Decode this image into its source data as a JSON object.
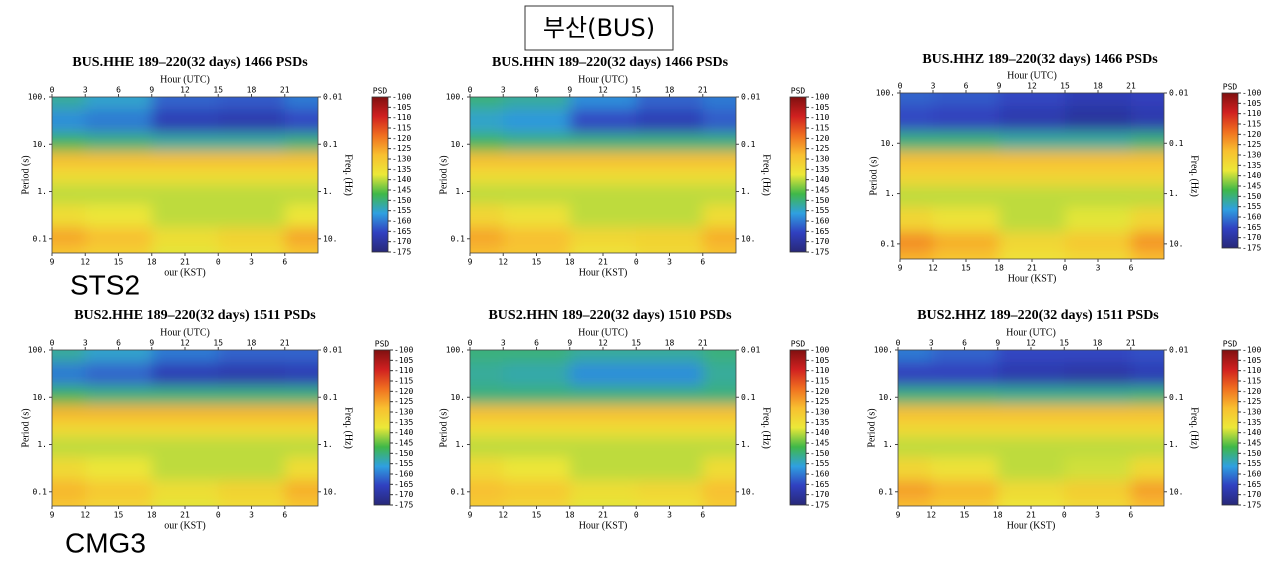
{
  "header": "부산(BUS)",
  "labels": [
    "STS2",
    "CMG3"
  ],
  "colormap": [
    "#282878",
    "#3040c0",
    "#2fa0e0",
    "#40b848",
    "#ece838",
    "#f8c030",
    "#f07020",
    "#d02020",
    "#801010"
  ],
  "chart_data": [
    {
      "type": "heatmap",
      "title": "BUS.HHE 189–220(32 days) 1466 PSDs",
      "xlabel": "Hour (UTC)",
      "x2label": "our (KST)",
      "ylabel": "Period (s)",
      "y2label": "Freq. (Hz)",
      "zlabel": "PSD",
      "xlim": [
        0,
        24
      ],
      "xticks": [
        0,
        3,
        6,
        9,
        12,
        15,
        18,
        21
      ],
      "x2lim": [
        9,
        33
      ],
      "x2ticks": [
        9,
        12,
        15,
        18,
        21,
        {
          "value": 24,
          "label": "0"
        },
        {
          "value": 27,
          "label": "3"
        },
        {
          "value": 30,
          "label": "6"
        }
      ],
      "log": true,
      "ylim": [
        0.05,
        100
      ],
      "yticks": [
        {
          "value": 100,
          "label": "100."
        },
        {
          "value": 10,
          "label": "10."
        },
        {
          "value": 1,
          "label": "1."
        },
        0.1
      ],
      "y2lim": [
        20,
        0.01
      ],
      "y2ticks": [
        0.01,
        0.1,
        {
          "value": 1,
          "label": "1."
        },
        {
          "value": 10,
          "label": "10."
        }
      ],
      "zlim": [
        -175,
        -100
      ],
      "zticks": [
        -100,
        -105,
        -110,
        -115,
        -120,
        -125,
        -130,
        -135,
        -140,
        -145,
        -150,
        -155,
        -160,
        -165,
        -170,
        -175
      ],
      "x": [
        0,
        6,
        12,
        18,
        24
      ],
      "y": [
        100,
        30,
        10,
        5,
        2,
        1,
        0.3,
        0.1,
        0.05
      ],
      "z": [
        [
          -152,
          -155,
          -162,
          -163,
          -160
        ],
        [
          -158,
          -160,
          -167,
          -168,
          -165
        ],
        [
          -148,
          -150,
          -152,
          -152,
          -150
        ],
        [
          -128,
          -128,
          -128,
          -128,
          -128
        ],
        [
          -135,
          -135,
          -135,
          -135,
          -135
        ],
        [
          -140,
          -140,
          -140,
          -140,
          -140
        ],
        [
          -135,
          -137,
          -140,
          -140,
          -137
        ],
        [
          -125,
          -128,
          -135,
          -132,
          -125
        ],
        [
          -130,
          -132,
          -138,
          -135,
          -130
        ]
      ]
    },
    {
      "type": "heatmap",
      "title": "BUS.HHN 189–220(32 days) 1466 PSDs",
      "xlabel": "Hour (UTC)",
      "x2label": "Hour (KST)",
      "ylabel": "Period (s)",
      "y2label": "Freq. (Hz)",
      "zlabel": "PSD",
      "xlim": [
        0,
        24
      ],
      "xticks": [
        0,
        3,
        6,
        9,
        12,
        15,
        18,
        21
      ],
      "x2lim": [
        9,
        33
      ],
      "x2ticks": [
        9,
        12,
        15,
        18,
        21,
        {
          "value": 24,
          "label": "0"
        },
        {
          "value": 27,
          "label": "3"
        },
        {
          "value": 30,
          "label": "6"
        }
      ],
      "log": true,
      "ylim": [
        0.05,
        100
      ],
      "yticks": [
        {
          "value": 100,
          "label": "100."
        },
        {
          "value": 10,
          "label": "10."
        },
        {
          "value": 1,
          "label": "1."
        },
        0.1
      ],
      "y2lim": [
        20,
        0.01
      ],
      "y2ticks": [
        0.01,
        0.1,
        {
          "value": 1,
          "label": "1."
        },
        {
          "value": 10,
          "label": "10."
        }
      ],
      "zlim": [
        -175,
        -100
      ],
      "zticks": [
        -100,
        -105,
        -110,
        -115,
        -120,
        -125,
        -130,
        -135,
        -140,
        -145,
        -150,
        -155,
        -160,
        -165,
        -170,
        -175
      ],
      "x": [
        0,
        6,
        12,
        18,
        24
      ],
      "y": [
        100,
        30,
        10,
        5,
        2,
        1,
        0.3,
        0.1,
        0.05
      ],
      "z": [
        [
          -150,
          -152,
          -158,
          -162,
          -160
        ],
        [
          -155,
          -157,
          -165,
          -167,
          -163
        ],
        [
          -148,
          -150,
          -150,
          -150,
          -150
        ],
        [
          -128,
          -128,
          -128,
          -128,
          -128
        ],
        [
          -135,
          -135,
          -135,
          -135,
          -135
        ],
        [
          -140,
          -140,
          -140,
          -140,
          -140
        ],
        [
          -133,
          -136,
          -140,
          -140,
          -135
        ],
        [
          -125,
          -128,
          -133,
          -132,
          -126
        ],
        [
          -128,
          -130,
          -136,
          -134,
          -129
        ]
      ]
    },
    {
      "type": "heatmap",
      "title": "BUS.HHZ 189–220(32 days) 1466 PSDs",
      "xlabel": "Hour (UTC)",
      "x2label": "Hour (KST)",
      "ylabel": "Period (s)",
      "y2label": "Freq. (Hz)",
      "zlabel": "PSD",
      "xlim": [
        0,
        24
      ],
      "xticks": [
        0,
        3,
        6,
        9,
        12,
        15,
        18,
        21
      ],
      "x2lim": [
        9,
        33
      ],
      "x2ticks": [
        9,
        12,
        15,
        18,
        21,
        {
          "value": 24,
          "label": "0"
        },
        {
          "value": 27,
          "label": "3"
        },
        {
          "value": 30,
          "label": "6"
        }
      ],
      "log": true,
      "ylim": [
        0.05,
        100
      ],
      "yticks": [
        {
          "value": 100,
          "label": "100."
        },
        {
          "value": 10,
          "label": "10."
        },
        {
          "value": 1,
          "label": "1."
        },
        0.1
      ],
      "y2lim": [
        20,
        0.01
      ],
      "y2ticks": [
        0.01,
        0.1,
        {
          "value": 1,
          "label": "1."
        },
        {
          "value": 10,
          "label": "10."
        }
      ],
      "zlim": [
        -175,
        -100
      ],
      "zticks": [
        -100,
        -105,
        -110,
        -115,
        -120,
        -125,
        -130,
        -135,
        -140,
        -145,
        -150,
        -155,
        -160,
        -165,
        -170,
        -175
      ],
      "x": [
        0,
        6,
        12,
        18,
        24
      ],
      "y": [
        100,
        30,
        10,
        5,
        2,
        1,
        0.3,
        0.1,
        0.05
      ],
      "z": [
        [
          -162,
          -163,
          -165,
          -167,
          -166
        ],
        [
          -165,
          -166,
          -168,
          -170,
          -168
        ],
        [
          -150,
          -150,
          -152,
          -152,
          -150
        ],
        [
          -128,
          -128,
          -128,
          -128,
          -128
        ],
        [
          -133,
          -133,
          -133,
          -133,
          -133
        ],
        [
          -140,
          -140,
          -140,
          -140,
          -140
        ],
        [
          -133,
          -136,
          -140,
          -138,
          -133
        ],
        [
          -122,
          -126,
          -133,
          -130,
          -123
        ],
        [
          -127,
          -130,
          -136,
          -134,
          -128
        ]
      ]
    },
    {
      "type": "heatmap",
      "title": "BUS2.HHE 189–220(32 days) 1511 PSDs",
      "xlabel": "Hour (UTC)",
      "x2label": "our (KST)",
      "ylabel": "Period (s)",
      "y2label": "Freq. (Hz)",
      "zlabel": "PSD",
      "xlim": [
        0,
        24
      ],
      "xticks": [
        0,
        3,
        6,
        9,
        12,
        15,
        18,
        21
      ],
      "x2lim": [
        9,
        33
      ],
      "x2ticks": [
        9,
        12,
        15,
        18,
        21,
        {
          "value": 24,
          "label": "0"
        },
        {
          "value": 27,
          "label": "3"
        },
        {
          "value": 30,
          "label": "6"
        }
      ],
      "log": true,
      "ylim": [
        0.05,
        100
      ],
      "yticks": [
        {
          "value": 100,
          "label": "100."
        },
        {
          "value": 10,
          "label": "10."
        },
        {
          "value": 1,
          "label": "1."
        },
        0.1
      ],
      "y2lim": [
        20,
        0.01
      ],
      "y2ticks": [
        0.01,
        0.1,
        {
          "value": 1,
          "label": "1."
        },
        {
          "value": 10,
          "label": "10."
        }
      ],
      "zlim": [
        -175,
        -100
      ],
      "zticks": [
        -100,
        -105,
        -110,
        -115,
        -120,
        -125,
        -130,
        -135,
        -140,
        -145,
        -150,
        -155,
        -160,
        -165,
        -170,
        -175
      ],
      "x": [
        0,
        6,
        12,
        18,
        24
      ],
      "y": [
        100,
        30,
        10,
        5,
        2,
        1,
        0.3,
        0.1,
        0.05
      ],
      "z": [
        [
          -152,
          -155,
          -160,
          -162,
          -162
        ],
        [
          -160,
          -162,
          -167,
          -168,
          -167
        ],
        [
          -148,
          -150,
          -150,
          -150,
          -150
        ],
        [
          -127,
          -127,
          -127,
          -127,
          -127
        ],
        [
          -134,
          -134,
          -134,
          -134,
          -134
        ],
        [
          -140,
          -140,
          -140,
          -140,
          -140
        ],
        [
          -134,
          -137,
          -140,
          -140,
          -135
        ],
        [
          -127,
          -130,
          -135,
          -132,
          -126
        ],
        [
          -130,
          -133,
          -138,
          -135,
          -130
        ]
      ]
    },
    {
      "type": "heatmap",
      "title": "BUS2.HHN 189–220(32 days) 1510 PSDs",
      "xlabel": "Hour (UTC)",
      "x2label": "Hour (KST)",
      "ylabel": "Period (s)",
      "y2label": "Freq. (Hz)",
      "zlabel": "PSD",
      "xlim": [
        0,
        24
      ],
      "xticks": [
        0,
        3,
        6,
        9,
        12,
        15,
        18,
        21
      ],
      "x2lim": [
        9,
        33
      ],
      "x2ticks": [
        9,
        12,
        15,
        18,
        21,
        {
          "value": 24,
          "label": "0"
        },
        {
          "value": 27,
          "label": "3"
        },
        {
          "value": 30,
          "label": "6"
        }
      ],
      "log": true,
      "ylim": [
        0.05,
        100
      ],
      "yticks": [
        {
          "value": 100,
          "label": "100."
        },
        {
          "value": 10,
          "label": "10."
        },
        {
          "value": 1,
          "label": "1."
        },
        0.1
      ],
      "y2lim": [
        20,
        0.01
      ],
      "y2ticks": [
        0.01,
        0.1,
        {
          "value": 1,
          "label": "1."
        },
        {
          "value": 10,
          "label": "10."
        }
      ],
      "zlim": [
        -175,
        -100
      ],
      "zticks": [
        -100,
        -105,
        -110,
        -115,
        -120,
        -125,
        -130,
        -135,
        -140,
        -145,
        -150,
        -155,
        -160,
        -165,
        -170,
        -175
      ],
      "x": [
        0,
        6,
        12,
        18,
        24
      ],
      "y": [
        100,
        30,
        10,
        5,
        2,
        1,
        0.3,
        0.1,
        0.05
      ],
      "z": [
        [
          -150,
          -150,
          -152,
          -152,
          -150
        ],
        [
          -152,
          -153,
          -158,
          -158,
          -152
        ],
        [
          -150,
          -150,
          -150,
          -150,
          -150
        ],
        [
          -128,
          -128,
          -128,
          -128,
          -128
        ],
        [
          -135,
          -135,
          -135,
          -135,
          -135
        ],
        [
          -140,
          -140,
          -140,
          -140,
          -140
        ],
        [
          -134,
          -137,
          -140,
          -140,
          -135
        ],
        [
          -128,
          -130,
          -135,
          -133,
          -128
        ],
        [
          -131,
          -133,
          -138,
          -136,
          -131
        ]
      ]
    },
    {
      "type": "heatmap",
      "title": "BUS2.HHZ 189–220(32 days) 1511 PSDs",
      "xlabel": "Hour (UTC)",
      "x2label": "Hour (KST)",
      "ylabel": "Period (s)",
      "y2label": "Freq. (Hz)",
      "zlabel": "PSD",
      "xlim": [
        0,
        24
      ],
      "xticks": [
        0,
        3,
        6,
        9,
        12,
        15,
        18,
        21
      ],
      "x2lim": [
        9,
        33
      ],
      "x2ticks": [
        9,
        12,
        15,
        18,
        21,
        {
          "value": 24,
          "label": "0"
        },
        {
          "value": 27,
          "label": "3"
        },
        {
          "value": 30,
          "label": "6"
        }
      ],
      "log": true,
      "ylim": [
        0.05,
        100
      ],
      "yticks": [
        {
          "value": 100,
          "label": "100."
        },
        {
          "value": 10,
          "label": "10."
        },
        {
          "value": 1,
          "label": "1."
        },
        0.1
      ],
      "y2lim": [
        20,
        0.01
      ],
      "y2ticks": [
        0.01,
        0.1,
        {
          "value": 1,
          "label": "1."
        },
        {
          "value": 10,
          "label": "10."
        }
      ],
      "zlim": [
        -175,
        -100
      ],
      "zticks": [
        -100,
        -105,
        -110,
        -115,
        -120,
        -125,
        -130,
        -135,
        -140,
        -145,
        -150,
        -155,
        -160,
        -165,
        -170,
        -175
      ],
      "x": [
        0,
        6,
        12,
        18,
        24
      ],
      "y": [
        100,
        30,
        10,
        5,
        2,
        1,
        0.3,
        0.1,
        0.05
      ],
      "z": [
        [
          -160,
          -162,
          -165,
          -165,
          -164
        ],
        [
          -166,
          -166,
          -168,
          -169,
          -167
        ],
        [
          -150,
          -150,
          -151,
          -151,
          -150
        ],
        [
          -128,
          -128,
          -128,
          -128,
          -128
        ],
        [
          -134,
          -134,
          -134,
          -134,
          -134
        ],
        [
          -140,
          -140,
          -140,
          -140,
          -140
        ],
        [
          -133,
          -136,
          -140,
          -139,
          -134
        ],
        [
          -124,
          -127,
          -134,
          -131,
          -124
        ],
        [
          -128,
          -131,
          -137,
          -134,
          -128
        ]
      ]
    }
  ]
}
